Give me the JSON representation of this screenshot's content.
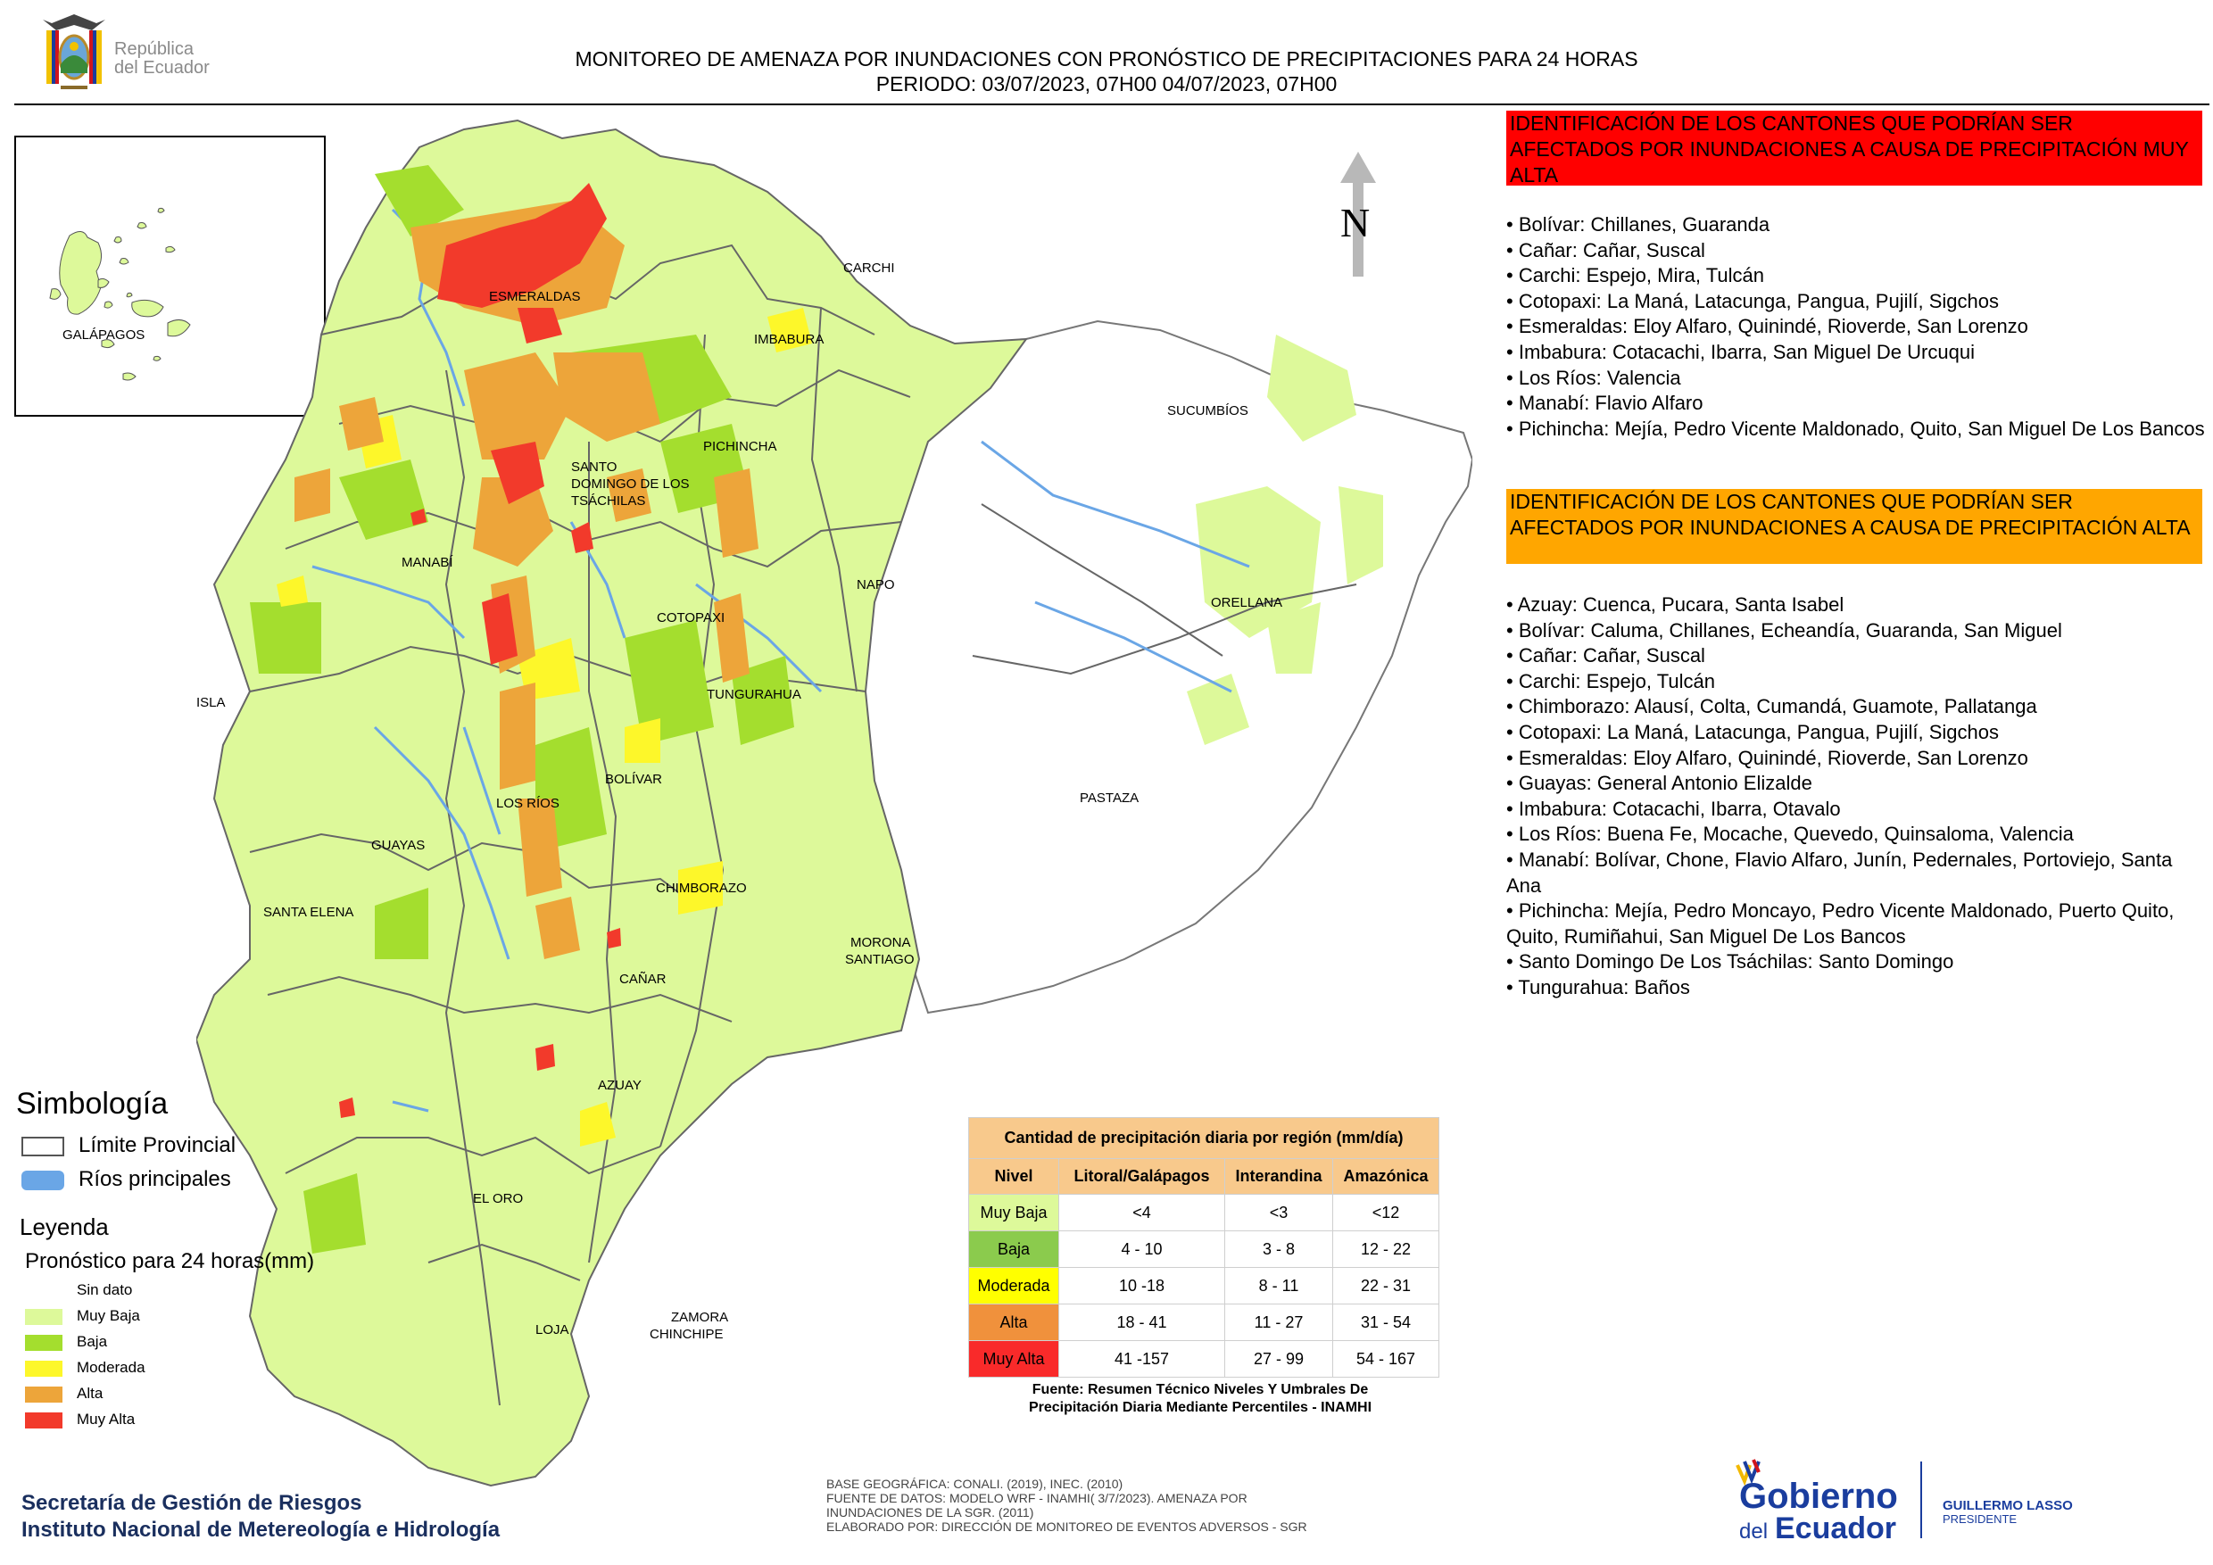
{
  "header": {
    "republic_line1": "República",
    "republic_line2": "del Ecuador",
    "title": "MONITOREO DE AMENAZA POR INUNDACIONES  CON PRONÓSTICO DE  PRECIPITACIONES PARA 24 HORAS",
    "period": "PERIODO: 03/07/2023, 07H00 04/07/2023, 07H00"
  },
  "inset": {
    "label": "GALÁPAGOS"
  },
  "north_label": "N",
  "map_labels": {
    "esmeraldas": "ESMERALDAS",
    "carchi": "CARCHI",
    "imbabura": "IMBABURA",
    "sucumbios": "SUCUMBÍOS",
    "pichincha": "PICHINCHA",
    "santo_domingo_1": "SANTO",
    "santo_domingo_2": "DOMINGO DE LOS",
    "santo_domingo_3": "TSÁCHILAS",
    "manabi": "MANABÍ",
    "napo": "NAPO",
    "orellana": "ORELLANA",
    "cotopaxi": "COTOPAXI",
    "isla": "ISLA",
    "tungurahua": "TUNGURAHUA",
    "bolivar": "BOLÍVAR",
    "los_rios": "LOS RÍOS",
    "pastaza": "PASTAZA",
    "guayas": "GUAYAS",
    "chimborazo": "CHIMBORAZO",
    "santa_elena": "SANTA ELENA",
    "morona_1": "MORONA",
    "morona_2": "SANTIAGO",
    "canar": "CAÑAR",
    "azuay": "AZUAY",
    "el_oro": "EL ORO",
    "loja": "LOJA",
    "zamora_1": "ZAMORA",
    "zamora_2": "CHINCHIPE"
  },
  "very_high": {
    "banner": "IDENTIFICACIÓN DE LOS CANTONES QUE PODRÍAN SER AFECTADOS POR INUNDACIONES  A CAUSA DE PRECIPITACIÓN MUY ALTA",
    "items": [
      "Bolívar: Chillanes, Guaranda",
      "Cañar: Cañar, Suscal",
      "Carchi: Espejo, Mira, Tulcán",
      "Cotopaxi: La Maná, Latacunga, Pangua, Pujilí, Sigchos",
      "Esmeraldas: Eloy Alfaro, Quinindé, Rioverde, San Lorenzo",
      "Imbabura: Cotacachi, Ibarra, San Miguel De Urcuqui",
      "Los Ríos: Valencia",
      "Manabí: Flavio Alfaro",
      "Pichincha: Mejía, Pedro Vicente Maldonado, Quito, San Miguel De Los Bancos"
    ]
  },
  "high": {
    "banner": "IDENTIFICACIÓN DE LOS CANTONES QUE  PODRÍAN SER AFECTADOS POR INUNDACIONES  A CAUSA DE PRECIPITACIÓN ALTA",
    "items": [
      "Azuay: Cuenca, Pucara, Santa Isabel",
      "Bolívar: Caluma, Chillanes, Echeandía, Guaranda, San Miguel",
      "Cañar: Cañar, Suscal",
      "Carchi: Espejo, Tulcán",
      "Chimborazo: Alausí, Colta, Cumandá, Guamote, Pallatanga",
      "Cotopaxi: La Maná, Latacunga, Pangua, Pujilí, Sigchos",
      "Esmeraldas: Eloy Alfaro, Quinindé, Rioverde, San Lorenzo",
      "Guayas: General Antonio Elizalde",
      "Imbabura: Cotacachi, Ibarra, Otavalo",
      "Los Ríos: Buena Fe, Mocache, Quevedo, Quinsaloma, Valencia",
      "Manabí: Bolívar, Chone, Flavio Alfaro, Junín, Pedernales, Portoviejo, Santa Ana",
      "Pichincha: Mejía, Pedro Moncayo, Pedro Vicente Maldonado, Puerto Quito, Quito, Rumiñahui, San Miguel De Los Bancos",
      "Santo Domingo De Los Tsáchilas: Santo Domingo",
      "Tungurahua: Baños"
    ]
  },
  "symbology": {
    "title": "Simbología",
    "limit": "Límite Provincial",
    "rivers": "Ríos principales"
  },
  "legend": {
    "title": "Leyenda",
    "subtitle": "Pronóstico para 24 horas(mm)",
    "items": [
      {
        "label": "Sin dato",
        "color": "#ffffff"
      },
      {
        "label": "Muy Baja",
        "color": "#ddf99a"
      },
      {
        "label": "Baja",
        "color": "#a4de2e"
      },
      {
        "label": "Moderada",
        "color": "#fdf72a"
      },
      {
        "label": "Alta",
        "color": "#eda53a"
      },
      {
        "label": "Muy Alta",
        "color": "#f23a2b"
      }
    ]
  },
  "table": {
    "title": "Cantidad de precipitación diaria por región (mm/día)",
    "headers": [
      "Nivel",
      "Litoral/Galápagos",
      "Interandina",
      "Amazónica"
    ],
    "rows": [
      {
        "nivel": "Muy Baja",
        "color": "#ddf99a",
        "litoral": "<4",
        "interandina": "<3",
        "amazonica": "<12"
      },
      {
        "nivel": "Baja",
        "color": "#8bcb4d",
        "litoral": "4 - 10",
        "interandina": "3 - 8",
        "amazonica": "12 - 22"
      },
      {
        "nivel": "Moderada",
        "color": "#ffff00",
        "litoral": "10 -18",
        "interandina": "8 - 11",
        "amazonica": "22 - 31"
      },
      {
        "nivel": "Alta",
        "color": "#f0913c",
        "litoral": "18 - 41",
        "interandina": "11 - 27",
        "amazonica": "31 - 54"
      },
      {
        "nivel": "Muy Alta",
        "color": "#f92a2a",
        "litoral": "41 -157",
        "interandina": "27 - 99",
        "amazonica": "54 - 167"
      }
    ],
    "source_line1": "Fuente: Resumen Técnico Niveles Y Umbrales De",
    "source_line2": "Precipitación Diaria Mediante Percentiles - INAMHI"
  },
  "footer": {
    "org_line1": "Secretaría de Gestión de Riesgos",
    "org_line2": "Instituto Nacional de Metereología e Hidrología",
    "base_line1": "BASE GEOGRÁFICA: CONALI. (2019), INEC. (2010)",
    "base_line2": "FUENTE DE DATOS: MODELO WRF - INAMHI( 3/7/2023).  AMENAZA POR",
    "base_line3": "INUNDACIONES DE LA SGR. (2011)",
    "base_line4": "ELABORADO POR: DIRECCIÓN DE MONITOREO DE EVENTOS ADVERSOS - SGR",
    "gob_line1": "Gobierno",
    "gob_line2": "del",
    "gob_line3": "Ecuador",
    "president_line1": "GUILLERMO LASSO",
    "president_line2": "PRESIDENTE"
  }
}
